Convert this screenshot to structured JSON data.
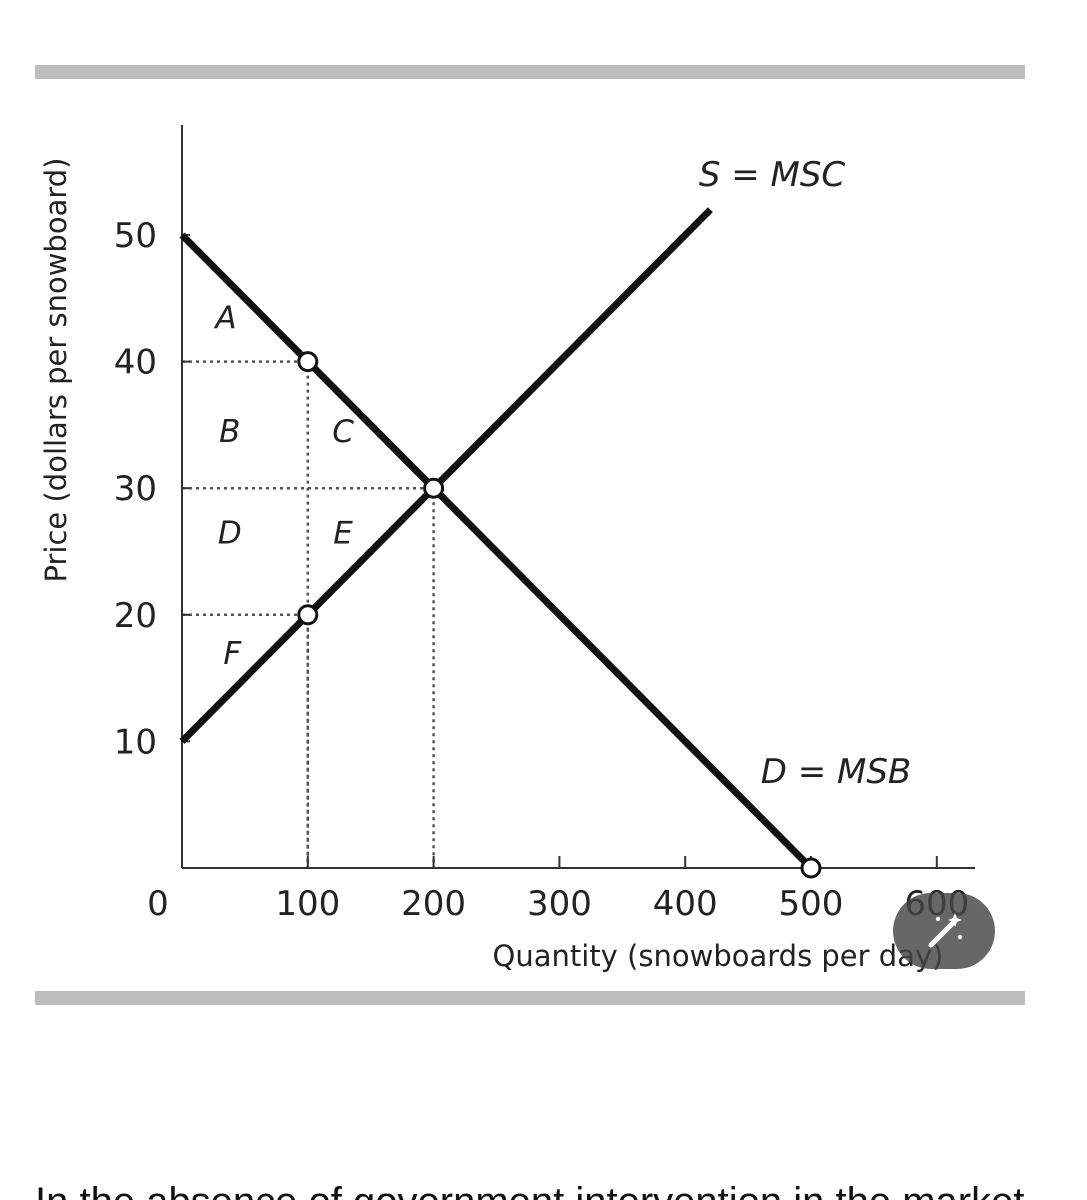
{
  "chart_data": {
    "type": "line",
    "xlabel": "Quantity (snowboards per day)",
    "ylabel": "Price (dollars per snowboard)",
    "xlim": [
      0,
      600
    ],
    "ylim": [
      0,
      55
    ],
    "x_ticks": [
      0,
      100,
      200,
      300,
      400,
      500,
      600
    ],
    "x_tick_labels": [
      "0",
      "100",
      "200",
      "300",
      "400",
      "500",
      "600"
    ],
    "y_ticks": [
      10,
      20,
      30,
      40,
      50
    ],
    "y_tick_labels": [
      "10",
      "20",
      "30",
      "40",
      "50"
    ],
    "grid": false,
    "series": [
      {
        "name": "S = MSC",
        "x": [
          0,
          420
        ],
        "y": [
          10,
          52
        ]
      },
      {
        "name": "D = MSB",
        "x": [
          0,
          500
        ],
        "y": [
          50,
          0
        ]
      }
    ],
    "points": [
      {
        "x": 100,
        "y": 40
      },
      {
        "x": 200,
        "y": 30
      },
      {
        "x": 100,
        "y": 20
      },
      {
        "x": 500,
        "y": 0
      }
    ],
    "guides": [
      {
        "x": 100,
        "y": 40
      },
      {
        "x": 200,
        "y": 30
      },
      {
        "x": 100,
        "y": 20
      }
    ],
    "regions": [
      {
        "label": "A",
        "x": 35,
        "y": 43.5
      },
      {
        "label": "B",
        "x": 38,
        "y": 34.5
      },
      {
        "label": "C",
        "x": 128,
        "y": 34.5
      },
      {
        "label": "D",
        "x": 38,
        "y": 26.5
      },
      {
        "label": "E",
        "x": 128,
        "y": 26.5
      },
      {
        "label": "F",
        "x": 40,
        "y": 17
      }
    ]
  },
  "ui": {
    "edit_button_icon": "magic-wand-icon"
  },
  "bottom_text": "In the absence of government intervention in the market for"
}
